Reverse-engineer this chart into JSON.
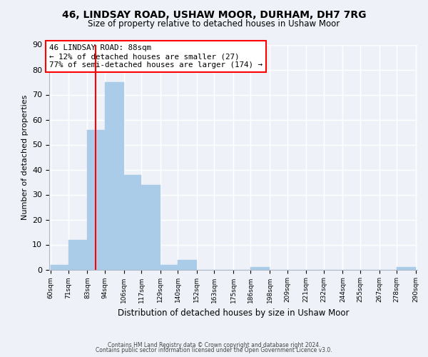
{
  "title1": "46, LINDSAY ROAD, USHAW MOOR, DURHAM, DH7 7RG",
  "title2": "Size of property relative to detached houses in Ushaw Moor",
  "xlabel": "Distribution of detached houses by size in Ushaw Moor",
  "ylabel": "Number of detached properties",
  "bar_edges": [
    60,
    71,
    83,
    94,
    106,
    117,
    129,
    140,
    152,
    163,
    175,
    186,
    198,
    209,
    221,
    232,
    244,
    255,
    267,
    278,
    290
  ],
  "bar_heights": [
    2,
    12,
    56,
    75,
    38,
    34,
    2,
    4,
    0,
    0,
    0,
    1,
    0,
    0,
    0,
    0,
    0,
    0,
    0,
    1
  ],
  "bar_color": "#aacce8",
  "bar_edgecolor": "#aacce8",
  "property_line_x": 88,
  "ylim": [
    0,
    90
  ],
  "yticks": [
    0,
    10,
    20,
    30,
    40,
    50,
    60,
    70,
    80,
    90
  ],
  "annotation_title": "46 LINDSAY ROAD: 88sqm",
  "annotation_line1": "← 12% of detached houses are smaller (27)",
  "annotation_line2": "77% of semi-detached houses are larger (174) →",
  "footer1": "Contains HM Land Registry data © Crown copyright and database right 2024.",
  "footer2": "Contains public sector information licensed under the Open Government Licence v3.0.",
  "tick_labels": [
    "60sqm",
    "71sqm",
    "83sqm",
    "94sqm",
    "106sqm",
    "117sqm",
    "129sqm",
    "140sqm",
    "152sqm",
    "163sqm",
    "175sqm",
    "186sqm",
    "198sqm",
    "209sqm",
    "221sqm",
    "232sqm",
    "244sqm",
    "255sqm",
    "267sqm",
    "278sqm",
    "290sqm"
  ],
  "background_color": "#eef2f8",
  "grid_color": "#ffffff"
}
